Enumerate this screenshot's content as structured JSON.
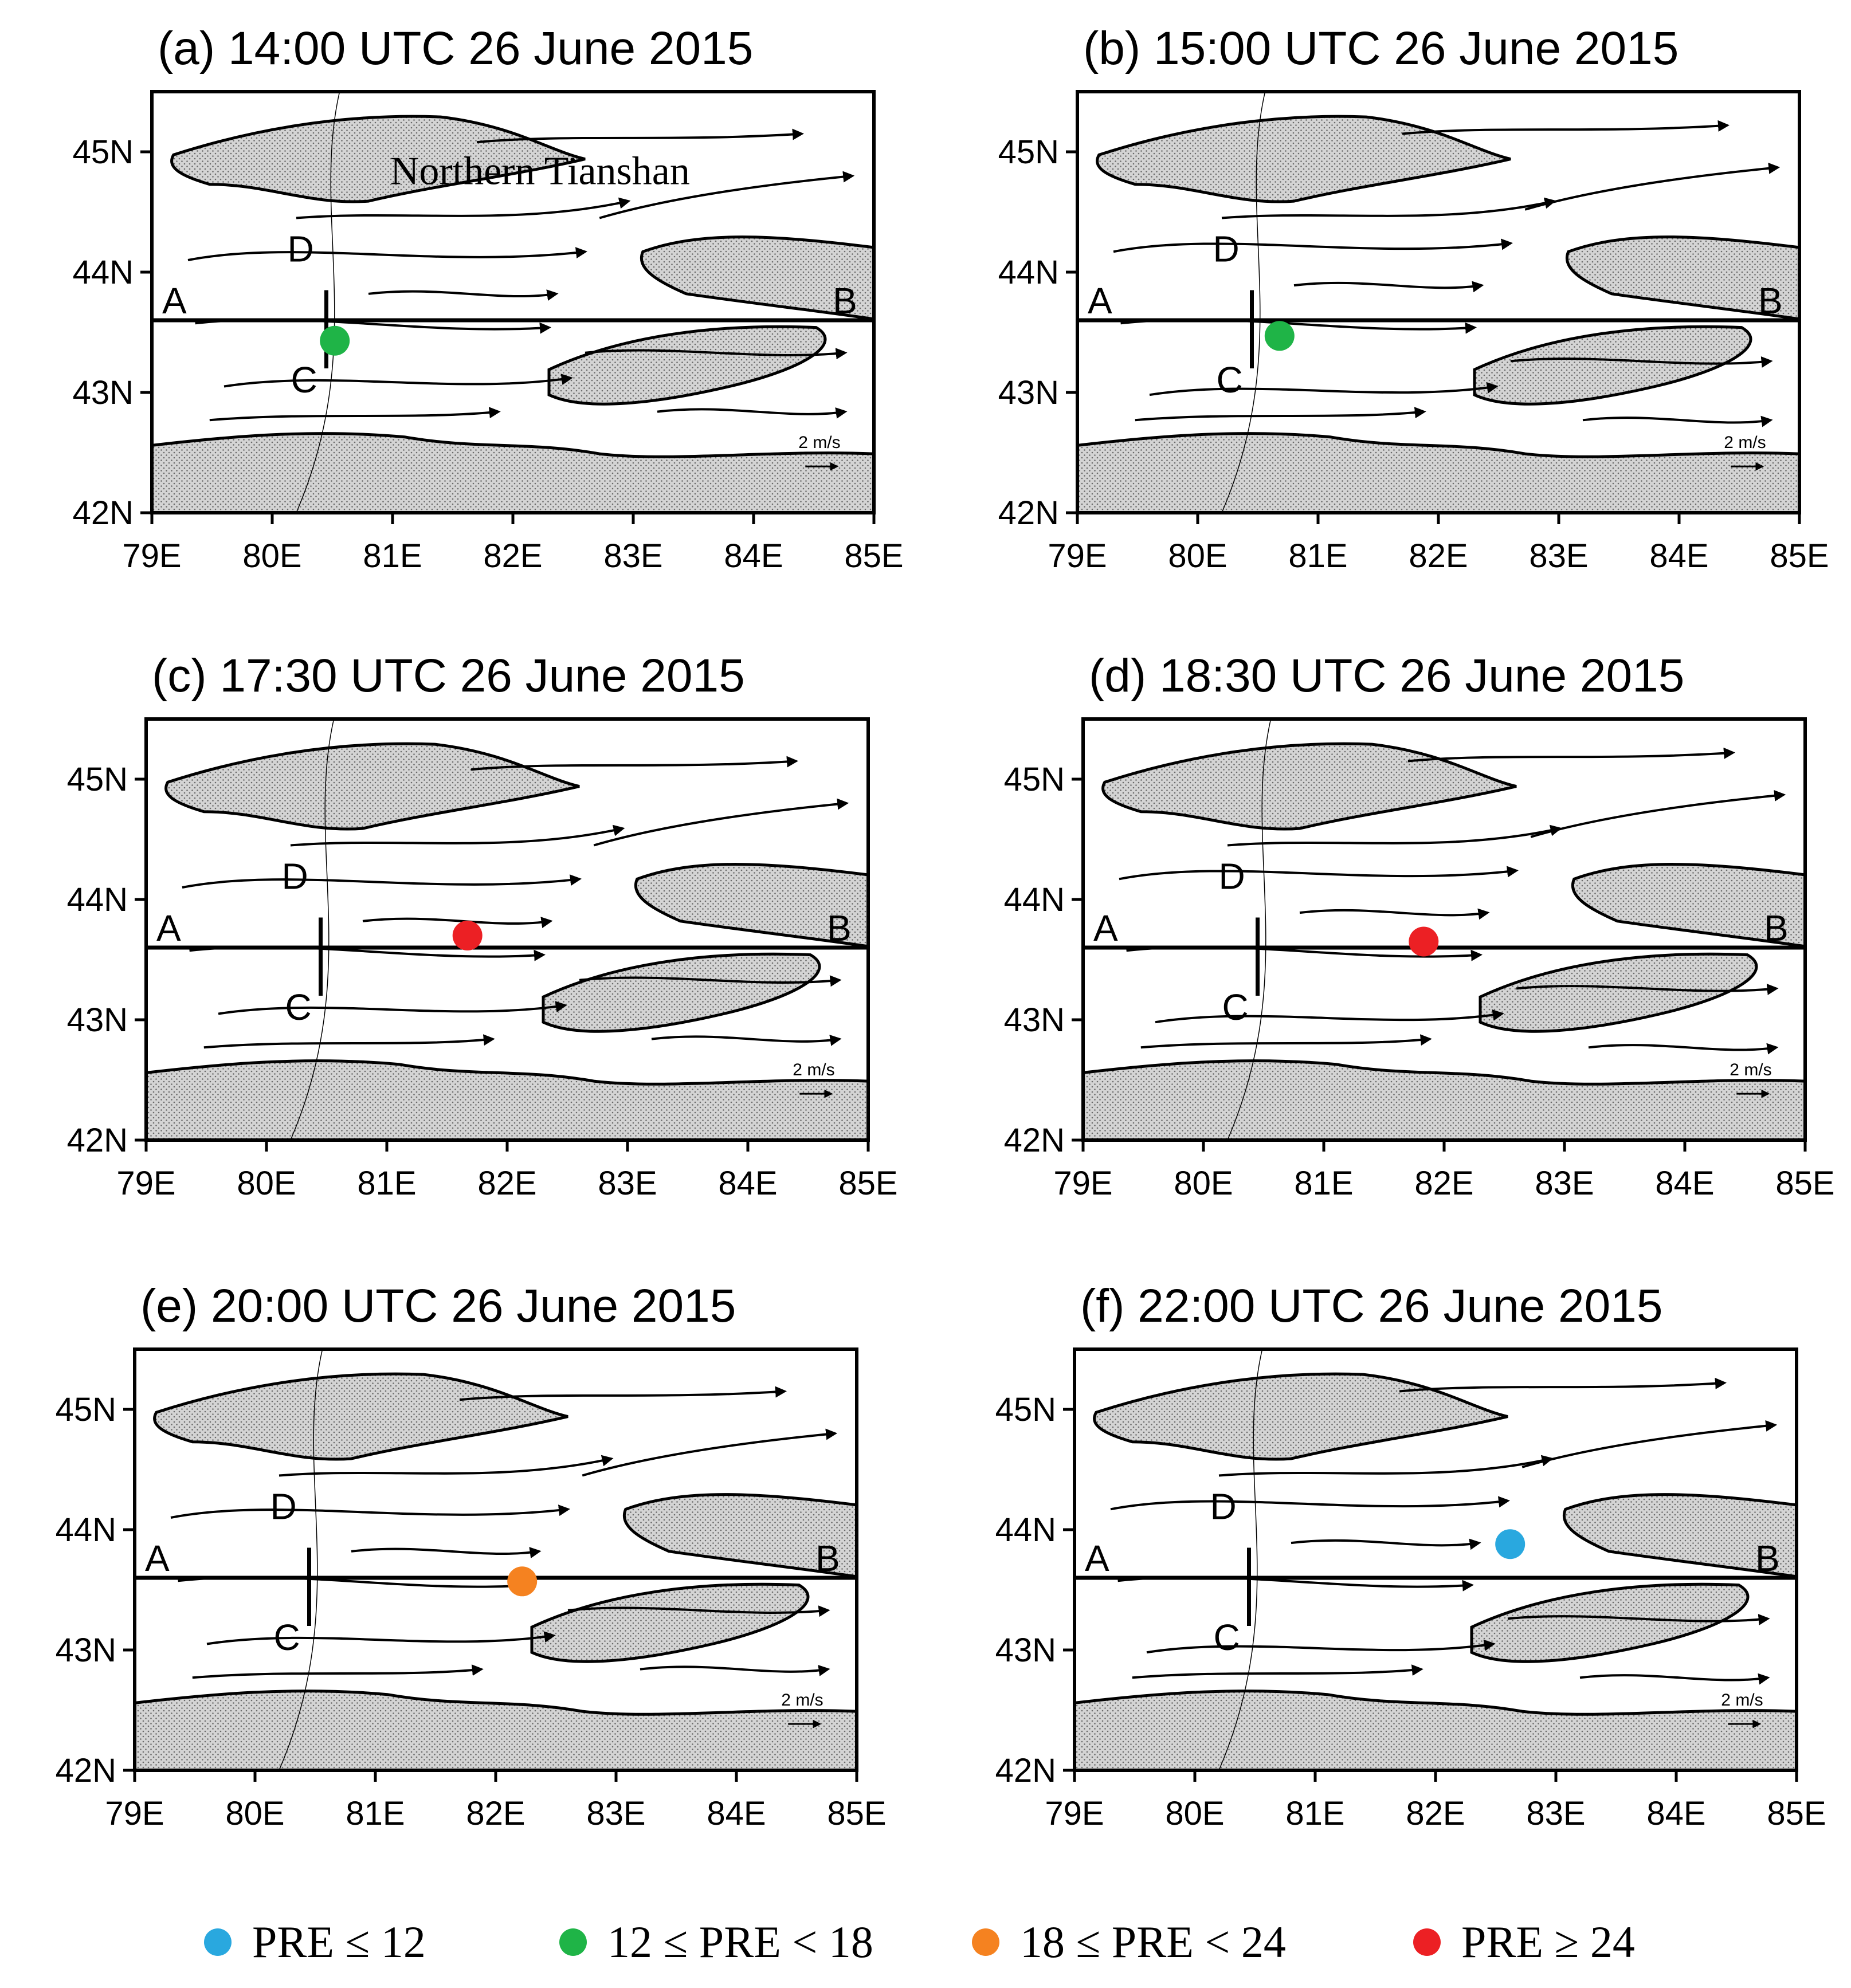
{
  "panels": [
    {
      "title": "(a) 14:00 UTC 26 June 2015",
      "region_label": "Northern Tianshan",
      "marker": {
        "lon": 80.52,
        "lat": 43.43,
        "category": "12-18"
      }
    },
    {
      "title": "(b) 15:00 UTC 26 June 2015",
      "region_label": "",
      "marker": {
        "lon": 80.68,
        "lat": 43.47,
        "category": "12-18"
      }
    },
    {
      "title": "(c) 17:30 UTC 26 June 2015",
      "region_label": "",
      "marker": {
        "lon": 81.67,
        "lat": 43.7,
        "category": "ge24"
      }
    },
    {
      "title": "(d) 18:30 UTC 26 June 2015",
      "region_label": "",
      "marker": {
        "lon": 81.83,
        "lat": 43.65,
        "category": "ge24"
      }
    },
    {
      "title": "(e) 20:00 UTC 26 June 2015",
      "region_label": "",
      "marker": {
        "lon": 82.22,
        "lat": 43.57,
        "category": "18-24"
      }
    },
    {
      "title": "(f) 22:00 UTC 26 June 2015",
      "region_label": "",
      "marker": {
        "lon": 82.62,
        "lat": 43.88,
        "category": "le12"
      }
    }
  ],
  "axes": {
    "lon_ticks": [
      "79E",
      "80E",
      "81E",
      "82E",
      "83E",
      "84E",
      "85E"
    ],
    "lat_ticks": [
      "42N",
      "43N",
      "44N",
      "45N"
    ],
    "lon_range": [
      79,
      85
    ],
    "lat_range": [
      42,
      45.5
    ]
  },
  "section_lines": {
    "A": {
      "lon": 79,
      "lat": 43.6
    },
    "B": {
      "lon": 85,
      "lat": 43.6
    },
    "C": {
      "lon": 80.45,
      "lat": 43.2
    },
    "D": {
      "lon": 80.45,
      "lat": 43.85
    }
  },
  "point_labels": {
    "A": "A",
    "B": "B",
    "C": "C",
    "D": "D"
  },
  "scale_vector_label": "2 m/s",
  "legend": [
    {
      "id": "le12",
      "label": "PRE ≤ 12",
      "color": "#29a8df"
    },
    {
      "id": "12-18",
      "label": "12 ≤ PRE < 18",
      "color": "#1fb447"
    },
    {
      "id": "18-24",
      "label": "18 ≤ PRE < 24",
      "color": "#f58220"
    },
    {
      "id": "ge24",
      "label": "PRE ≥ 24",
      "color": "#ec2024"
    }
  ],
  "colors": {
    "terrain_fill": "#d0d0d0",
    "line": "#000000"
  }
}
